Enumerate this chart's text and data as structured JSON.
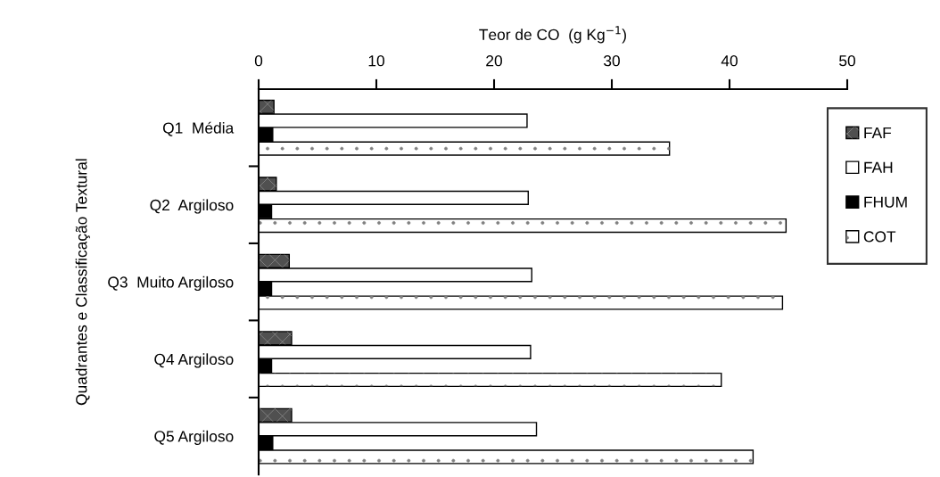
{
  "chart_data": {
    "type": "bar",
    "orientation": "horizontal",
    "xlabel": "Teor de CO  (g Kg$^{−1}$)",
    "ylabel": "Quadrantes e Classificação Textural",
    "categories": [
      "Q1  Média",
      "Q2  Argiloso",
      "Q3  Muito Argiloso",
      "Q4 Argiloso",
      "Q5 Argiloso"
    ],
    "series": [
      {
        "name": "FAF",
        "color": "#505050",
        "values": [
          1.3,
          1.5,
          2.6,
          2.8,
          2.8
        ]
      },
      {
        "name": "FAH",
        "color": "#ffffff",
        "values": [
          22.8,
          22.9,
          23.2,
          23.1,
          23.6
        ]
      },
      {
        "name": "FHUM",
        "color": "#000000",
        "values": [
          1.2,
          1.1,
          1.1,
          1.1,
          1.2
        ]
      },
      {
        "name": "COT",
        "color": "#ffffff",
        "values": [
          34.9,
          44.8,
          44.5,
          39.3,
          42.0
        ]
      }
    ],
    "xlim": [
      0,
      50
    ],
    "xticks": [
      0,
      10,
      20,
      30,
      40,
      50
    ],
    "grid": false,
    "legend": "right"
  }
}
